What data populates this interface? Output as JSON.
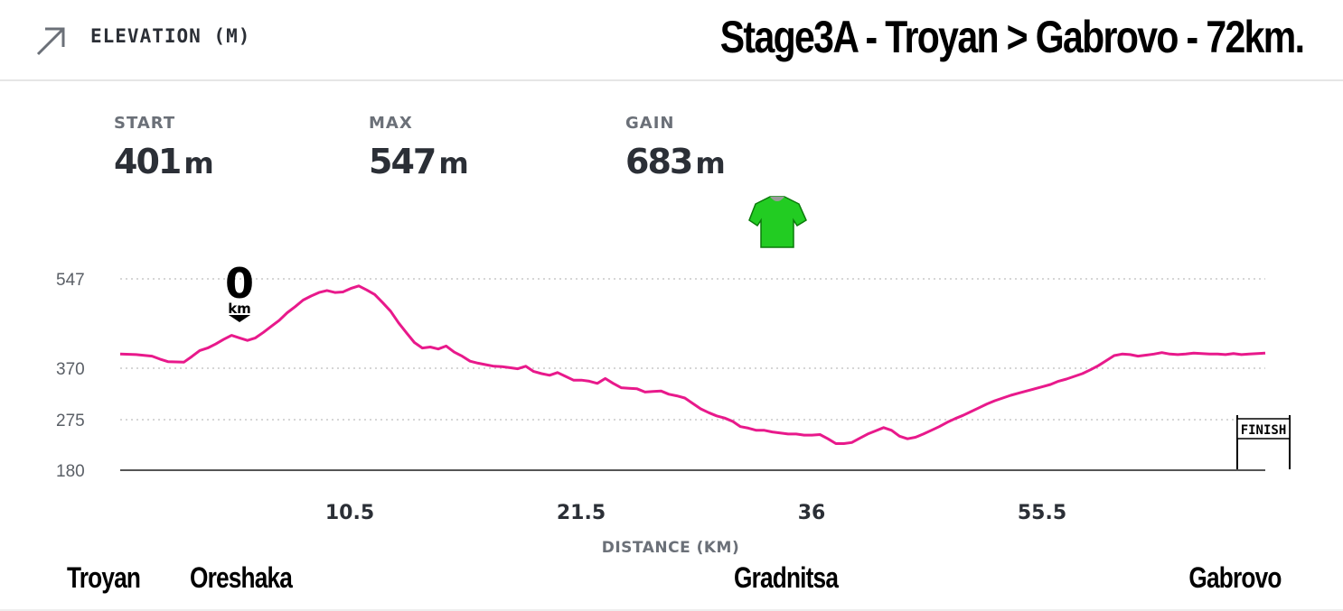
{
  "header": {
    "label": "ELEVATION (M)",
    "title": "Stage3A - Troyan > Gabrovo - 72km."
  },
  "stats": [
    {
      "label": "START",
      "value": "401",
      "unit": "m"
    },
    {
      "label": "MAX",
      "value": "547",
      "unit": "m"
    },
    {
      "label": "GAIN",
      "value": "683",
      "unit": "m"
    }
  ],
  "places": {
    "start": "Troyan",
    "village": "Oreshaka",
    "mid": "Gradnitsa",
    "end": "Gabrovo"
  },
  "markers": {
    "start_num": "0",
    "start_unit": "km",
    "finish": "FINISH"
  },
  "colors": {
    "line": "#e8198b",
    "jersey": "#22cc22",
    "grid": "#c8c8c8"
  },
  "icons": {
    "header": "arrow-up-right-icon",
    "jersey": "green-jersey-icon",
    "finish": "finish-banner-icon",
    "start": "zero-km-marker-icon"
  },
  "chart_data": {
    "type": "line",
    "title": "",
    "xlabel": "DISTANCE (KM)",
    "ylabel": "",
    "x_ticks": [
      "10.5",
      "21.5",
      "36",
      "55.5"
    ],
    "y_ticks": [
      180,
      275,
      370,
      547
    ],
    "ylim": [
      180,
      547
    ],
    "xlim": [
      0,
      72
    ],
    "grid": "horizontal dotted",
    "series": [
      {
        "name": "",
        "color": "#e8198b",
        "x": [
          0,
          1,
          2,
          2.5,
          3,
          4,
          4.5,
          5,
          5.5,
          6,
          6.5,
          7,
          7.5,
          8,
          8.5,
          9,
          9.5,
          10,
          10.5,
          11,
          11.5,
          12,
          12.5,
          13,
          13.5,
          14,
          14.5,
          15,
          15.5,
          16,
          16.5,
          17,
          17.5,
          18,
          18.5,
          19,
          19.5,
          20,
          20.5,
          21,
          21.5,
          22,
          22.5,
          23,
          23.5,
          24,
          24.5,
          25,
          25.5,
          26,
          26.5,
          27,
          27.5,
          28,
          28.5,
          29,
          29.5,
          30,
          30.5,
          31,
          31.5,
          32,
          32.5,
          33,
          33.5,
          34,
          34.5,
          35,
          35.5,
          36,
          36.5,
          37,
          37.5,
          38,
          38.5,
          39,
          39.5,
          40,
          40.5,
          41,
          41.5,
          42,
          42.5,
          43,
          43.5,
          44,
          44.5,
          45,
          45.5,
          46,
          46.5,
          47,
          47.5,
          48,
          48.5,
          49,
          49.5,
          50,
          50.5,
          51,
          51.5,
          52,
          52.5,
          53,
          53.5,
          54,
          54.5,
          55,
          55.5,
          56,
          56.5,
          57,
          57.5,
          58,
          58.5,
          59,
          59.5,
          60,
          60.5,
          61,
          61.5,
          62,
          62.5,
          63,
          63.5,
          64,
          64.5,
          65,
          65.5,
          66,
          66.5,
          67,
          67.5,
          68,
          68.5,
          69,
          69.5,
          70,
          70.5,
          71,
          72
        ],
        "y": [
          398,
          397,
          394,
          388,
          383,
          382,
          393,
          405,
          410,
          418,
          427,
          435,
          430,
          425,
          430,
          441,
          453,
          465,
          480,
          492,
          505,
          513,
          520,
          524,
          520,
          521,
          528,
          533,
          525,
          516,
          500,
          483,
          460,
          440,
          421,
          410,
          412,
          408,
          414,
          402,
          394,
          384,
          380,
          377,
          374,
          373,
          371,
          369,
          374,
          364,
          360,
          357,
          362,
          355,
          348,
          348,
          346,
          342,
          351,
          342,
          334,
          333,
          332,
          326,
          327,
          328,
          322,
          319,
          315,
          305,
          295,
          288,
          282,
          278,
          272,
          262,
          259,
          255,
          255,
          252,
          250,
          248,
          248,
          246,
          246,
          247,
          239,
          230,
          230,
          232,
          240,
          248,
          254,
          260,
          255,
          244,
          239,
          242,
          248,
          255,
          262,
          270,
          277,
          283,
          290,
          297,
          304,
          310,
          315,
          320,
          324,
          328,
          332,
          336,
          340,
          346,
          350,
          355,
          360,
          367,
          375,
          385,
          395,
          398,
          397,
          394,
          396,
          398,
          401,
          398,
          397,
          398,
          400,
          399,
          398,
          398,
          397,
          399,
          397,
          398,
          400
        ]
      }
    ]
  }
}
